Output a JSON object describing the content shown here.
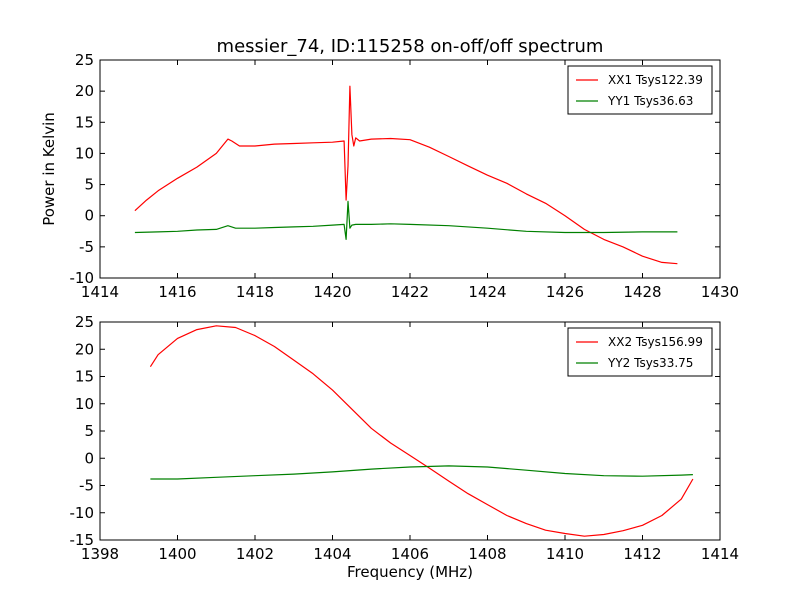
{
  "figure_title": "messier_74, ID:115258 on-off/off spectrum",
  "chart_data": [
    {
      "type": "line",
      "title": "messier_74, ID:115258 on-off/off spectrum",
      "xlabel": "",
      "ylabel": "Power in Kelvin",
      "xlim": [
        1414,
        1430
      ],
      "ylim": [
        -10,
        25
      ],
      "xticks": [
        1414,
        1416,
        1418,
        1420,
        1422,
        1424,
        1426,
        1428,
        1430
      ],
      "yticks": [
        -10,
        -5,
        0,
        5,
        10,
        15,
        20,
        25
      ],
      "grid": false,
      "legend_position": "top-right",
      "series": [
        {
          "name": "XX1 Tsys122.39",
          "color": "#ff0000",
          "x": [
            1414.9,
            1415.2,
            1415.5,
            1416.0,
            1416.5,
            1417.0,
            1417.3,
            1417.4,
            1417.6,
            1418.0,
            1418.5,
            1419.0,
            1419.5,
            1420.0,
            1420.3,
            1420.35,
            1420.4,
            1420.45,
            1420.5,
            1420.55,
            1420.6,
            1420.7,
            1421.0,
            1421.5,
            1422.0,
            1422.5,
            1423.0,
            1423.5,
            1424.0,
            1424.5,
            1425.0,
            1425.5,
            1426.0,
            1426.5,
            1427.0,
            1427.5,
            1428.0,
            1428.5,
            1428.9
          ],
          "values": [
            0.8,
            2.5,
            4.0,
            6.0,
            7.8,
            10.0,
            12.3,
            12.0,
            11.2,
            11.2,
            11.5,
            11.6,
            11.7,
            11.8,
            12.0,
            2.5,
            8.0,
            20.8,
            13.0,
            11.2,
            12.5,
            12.0,
            12.3,
            12.4,
            12.2,
            11.0,
            9.5,
            8.0,
            6.5,
            5.2,
            3.5,
            2.0,
            0.0,
            -2.2,
            -3.8,
            -5.0,
            -6.5,
            -7.5,
            -7.7
          ]
        },
        {
          "name": "YY1 Tsys36.63",
          "color": "#008000",
          "x": [
            1414.9,
            1415.5,
            1416.0,
            1416.5,
            1417.0,
            1417.3,
            1417.5,
            1418.0,
            1418.5,
            1419.0,
            1419.5,
            1420.0,
            1420.3,
            1420.35,
            1420.4,
            1420.45,
            1420.5,
            1420.6,
            1421.0,
            1421.5,
            1422.0,
            1423.0,
            1424.0,
            1425.0,
            1426.0,
            1427.0,
            1428.0,
            1428.9
          ],
          "values": [
            -2.7,
            -2.6,
            -2.5,
            -2.3,
            -2.2,
            -1.6,
            -2.0,
            -2.0,
            -1.9,
            -1.8,
            -1.7,
            -1.5,
            -1.4,
            -3.8,
            2.3,
            -2.0,
            -1.5,
            -1.4,
            -1.4,
            -1.3,
            -1.4,
            -1.6,
            -2.0,
            -2.5,
            -2.7,
            -2.7,
            -2.6,
            -2.6
          ]
        }
      ]
    },
    {
      "type": "line",
      "title": "",
      "xlabel": "Frequency (MHz)",
      "ylabel": "",
      "xlim": [
        1398,
        1414
      ],
      "ylim": [
        -15,
        25
      ],
      "xticks": [
        1398,
        1400,
        1402,
        1404,
        1406,
        1408,
        1410,
        1412,
        1414
      ],
      "yticks": [
        -15,
        -10,
        -5,
        0,
        5,
        10,
        15,
        20,
        25
      ],
      "grid": false,
      "legend_position": "top-right",
      "series": [
        {
          "name": "XX2 Tsys156.99",
          "color": "#ff0000",
          "x": [
            1399.3,
            1399.5,
            1400.0,
            1400.5,
            1401.0,
            1401.5,
            1402.0,
            1402.5,
            1403.0,
            1403.5,
            1404.0,
            1404.5,
            1405.0,
            1405.5,
            1406.0,
            1406.5,
            1407.0,
            1407.5,
            1408.0,
            1408.5,
            1409.0,
            1409.5,
            1410.0,
            1410.5,
            1411.0,
            1411.5,
            1412.0,
            1412.5,
            1413.0,
            1413.3
          ],
          "values": [
            16.8,
            19.0,
            22.0,
            23.6,
            24.3,
            24.0,
            22.5,
            20.5,
            18.0,
            15.5,
            12.5,
            9.0,
            5.5,
            2.8,
            0.5,
            -1.8,
            -4.2,
            -6.5,
            -8.5,
            -10.5,
            -12.0,
            -13.2,
            -13.8,
            -14.3,
            -14.0,
            -13.3,
            -12.3,
            -10.5,
            -7.5,
            -3.8
          ]
        },
        {
          "name": "YY2 Tsys33.75",
          "color": "#008000",
          "x": [
            1399.3,
            1400.0,
            1401.0,
            1402.0,
            1403.0,
            1404.0,
            1405.0,
            1406.0,
            1407.0,
            1408.0,
            1409.0,
            1410.0,
            1411.0,
            1412.0,
            1413.0,
            1413.3
          ],
          "values": [
            -3.8,
            -3.8,
            -3.5,
            -3.2,
            -2.9,
            -2.5,
            -2.0,
            -1.6,
            -1.4,
            -1.6,
            -2.2,
            -2.8,
            -3.2,
            -3.3,
            -3.1,
            -3.0
          ]
        }
      ]
    }
  ]
}
